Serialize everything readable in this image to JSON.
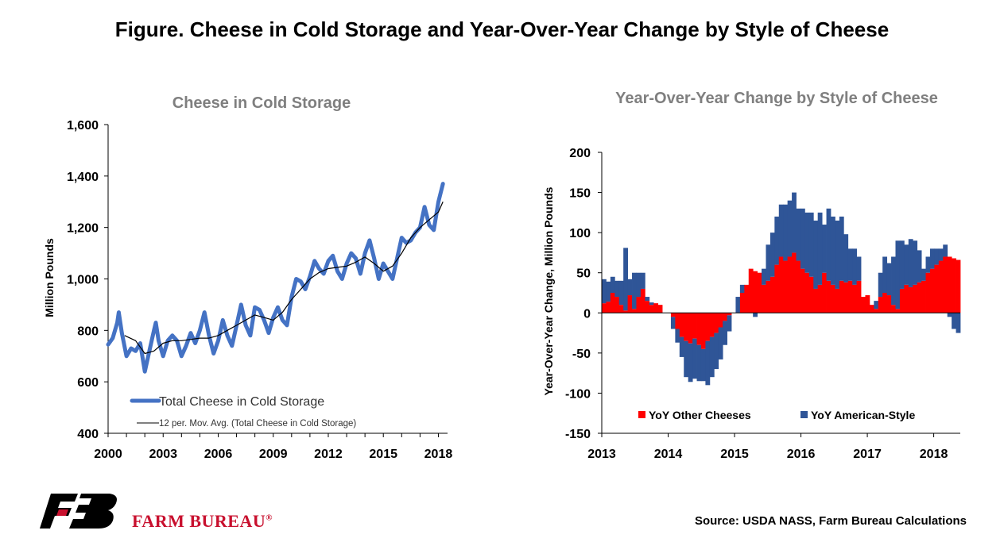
{
  "figure_title": "Figure. Cheese in Cold Storage and Year-Over-Year Change by Style of Cheese",
  "source": "Source: USDA NASS, Farm Bureau Calculations",
  "logo_text": "FARM BUREAU",
  "logo_mark": "®",
  "colors": {
    "storage_line": "#4472c4",
    "moving_avg": "#000000",
    "american": "#2f5597",
    "other": "#ff0000"
  },
  "chart_data": [
    {
      "type": "line",
      "title": "Cheese in Cold Storage",
      "xlabel": "",
      "ylabel": "Million Pounds",
      "ylim": [
        400,
        1600
      ],
      "xlim": [
        2000,
        2018.5
      ],
      "yticks": [
        "400",
        "600",
        "800",
        "1,000",
        "1,200",
        "1,400",
        "1,600"
      ],
      "xticks": [
        "2000",
        "2003",
        "2006",
        "2009",
        "2012",
        "2015",
        "2018"
      ],
      "grid": false,
      "legend": "bottom-left",
      "series": [
        {
          "name": "Total Cheese in Cold Storage",
          "x": [
            2000.0,
            2000.25,
            2000.5,
            2000.58,
            2000.75,
            2001.0,
            2001.25,
            2001.5,
            2001.75,
            2002.0,
            2002.25,
            2002.5,
            2002.6,
            2002.75,
            2003.0,
            2003.25,
            2003.5,
            2003.75,
            2004.0,
            2004.25,
            2004.5,
            2004.75,
            2005.0,
            2005.25,
            2005.5,
            2005.75,
            2006.0,
            2006.25,
            2006.5,
            2006.75,
            2007.0,
            2007.25,
            2007.5,
            2007.75,
            2008.0,
            2008.25,
            2008.5,
            2008.75,
            2009.0,
            2009.25,
            2009.5,
            2009.75,
            2010.0,
            2010.25,
            2010.5,
            2010.75,
            2011.0,
            2011.25,
            2011.5,
            2011.75,
            2012.0,
            2012.25,
            2012.5,
            2012.75,
            2013.0,
            2013.25,
            2013.5,
            2013.75,
            2014.0,
            2014.25,
            2014.5,
            2014.75,
            2015.0,
            2015.25,
            2015.5,
            2015.75,
            2016.0,
            2016.25,
            2016.5,
            2016.75,
            2017.0,
            2017.25,
            2017.5,
            2017.75,
            2018.0,
            2018.25
          ],
          "y": [
            745,
            770,
            830,
            870,
            790,
            700,
            730,
            720,
            750,
            640,
            720,
            800,
            830,
            760,
            700,
            760,
            780,
            760,
            700,
            740,
            790,
            750,
            800,
            870,
            780,
            710,
            760,
            840,
            780,
            740,
            820,
            900,
            820,
            780,
            890,
            880,
            840,
            790,
            850,
            890,
            840,
            820,
            930,
            1000,
            990,
            960,
            1010,
            1070,
            1040,
            1020,
            1070,
            1090,
            1030,
            1000,
            1060,
            1100,
            1080,
            1020,
            1100,
            1150,
            1080,
            1000,
            1060,
            1030,
            1000,
            1080,
            1160,
            1140,
            1150,
            1180,
            1200,
            1280,
            1210,
            1190,
            1300,
            1370
          ]
        },
        {
          "name": "12 per. Mov. Avg. (Total Cheese in Cold Storage)",
          "x": [
            2000.9,
            2001.5,
            2002.0,
            2002.5,
            2003.0,
            2003.5,
            2004.0,
            2004.5,
            2005.0,
            2005.5,
            2006.0,
            2006.5,
            2007.0,
            2007.5,
            2008.0,
            2008.5,
            2009.0,
            2009.5,
            2010.0,
            2010.5,
            2011.0,
            2011.5,
            2012.0,
            2012.5,
            2013.0,
            2013.5,
            2014.0,
            2014.5,
            2015.0,
            2015.5,
            2016.0,
            2016.5,
            2017.0,
            2017.5,
            2018.0,
            2018.25
          ],
          "y": [
            780,
            760,
            710,
            720,
            750,
            760,
            760,
            765,
            770,
            770,
            780,
            800,
            820,
            840,
            860,
            850,
            840,
            870,
            920,
            960,
            1000,
            1025,
            1040,
            1045,
            1050,
            1065,
            1085,
            1060,
            1030,
            1050,
            1100,
            1160,
            1200,
            1230,
            1260,
            1300
          ]
        }
      ]
    },
    {
      "type": "bar",
      "stacked": true,
      "title": "Year-Over-Year Change by Style of Cheese",
      "xlabel": "",
      "ylabel": "Year-Over-Year Change, Million Pounds",
      "ylim": [
        -150,
        200
      ],
      "yticks": [
        "200",
        "150",
        "100",
        "50",
        "0",
        "-50",
        "-100",
        "-150"
      ],
      "xticks": [
        "2013",
        "2014",
        "2015",
        "2016",
        "2017",
        "2018"
      ],
      "grid": false,
      "legend": "bottom",
      "series": [
        {
          "name": "YoY Other Cheeses",
          "values": [
            12,
            14,
            25,
            20,
            10,
            3,
            22,
            5,
            20,
            30,
            15,
            10,
            12,
            10,
            0,
            0,
            -5,
            -20,
            -30,
            -35,
            -38,
            -32,
            -40,
            -45,
            -35,
            -30,
            -25,
            -18,
            -10,
            -3,
            0,
            0,
            25,
            35,
            55,
            52,
            50,
            35,
            40,
            45,
            60,
            70,
            65,
            70,
            75,
            65,
            55,
            50,
            45,
            30,
            35,
            50,
            40,
            35,
            30,
            40,
            38,
            40,
            35,
            40,
            20,
            22,
            10,
            5,
            20,
            25,
            22,
            10,
            5,
            30,
            35,
            32,
            35,
            38,
            40,
            50,
            55,
            60,
            65,
            70,
            70,
            68,
            66
          ]
        },
        {
          "name": "YoY American-Style",
          "values": [
            30,
            25,
            20,
            20,
            30,
            78,
            20,
            45,
            30,
            20,
            5,
            3,
            0,
            0,
            0,
            0,
            -15,
            -17,
            -25,
            -45,
            -48,
            -50,
            -45,
            -40,
            -55,
            -50,
            -45,
            -40,
            -30,
            -20,
            0,
            20,
            10,
            0,
            0,
            -5,
            0,
            20,
            45,
            55,
            60,
            65,
            70,
            70,
            75,
            65,
            75,
            75,
            80,
            85,
            90,
            60,
            90,
            85,
            85,
            80,
            60,
            40,
            45,
            30,
            0,
            0,
            0,
            10,
            30,
            45,
            40,
            60,
            85,
            60,
            50,
            60,
            55,
            40,
            15,
            20,
            25,
            20,
            15,
            15,
            -5,
            -20,
            -25
          ]
        }
      ]
    }
  ]
}
